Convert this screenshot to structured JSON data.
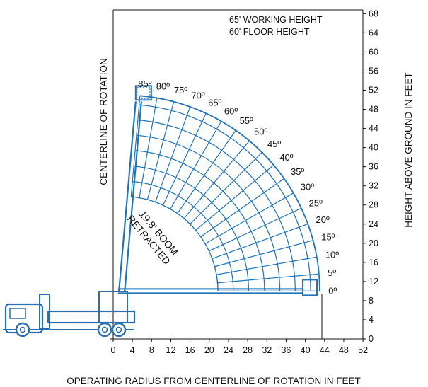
{
  "chart_data": {
    "type": "diagram",
    "notes": [
      "65' WORKING HEIGHT",
      "60' FLOOR HEIGHT"
    ],
    "xlabel": "OPERATING RADIUS FROM CENTERLINE OF ROTATION IN FEET",
    "ylabel": "HEIGHT ABOVE GROUND IN FEET",
    "centerline_label": "CENTERLINE OF ROTATION",
    "boom_label_lines": [
      "19.8' BOOM",
      "RETRACTED"
    ],
    "x_ticks": [
      "0",
      "4",
      "8",
      "12",
      "16",
      "20",
      "24",
      "28",
      "32",
      "36",
      "40",
      "44",
      "48",
      "52"
    ],
    "y_ticks": [
      "0",
      "4",
      "8",
      "12",
      "16",
      "20",
      "24",
      "28",
      "32",
      "36",
      "40",
      "44",
      "48",
      "52",
      "56",
      "60",
      "64",
      "68"
    ],
    "angles": [
      "0º",
      "5º",
      "10º",
      "15º",
      "20º",
      "25º",
      "30º",
      "35º",
      "40º",
      "45º",
      "50º",
      "55º",
      "60º",
      "65º",
      "70º",
      "75º",
      "80º",
      "85º"
    ],
    "xlim": [
      0,
      52
    ],
    "ylim": [
      0,
      68
    ],
    "pivot": {
      "x": 2,
      "y": 10
    },
    "extended_boom_length": 41,
    "retracted_boom_length": 19.8,
    "radii": [
      19.8,
      23.0,
      26.2,
      29.5,
      32.7,
      35.9,
      39.1,
      41.0
    ],
    "colors": {
      "grid": "#1f73b7",
      "shade": "#cfcfcf",
      "outline": "#111111",
      "truck": "#2a6fb0"
    }
  }
}
